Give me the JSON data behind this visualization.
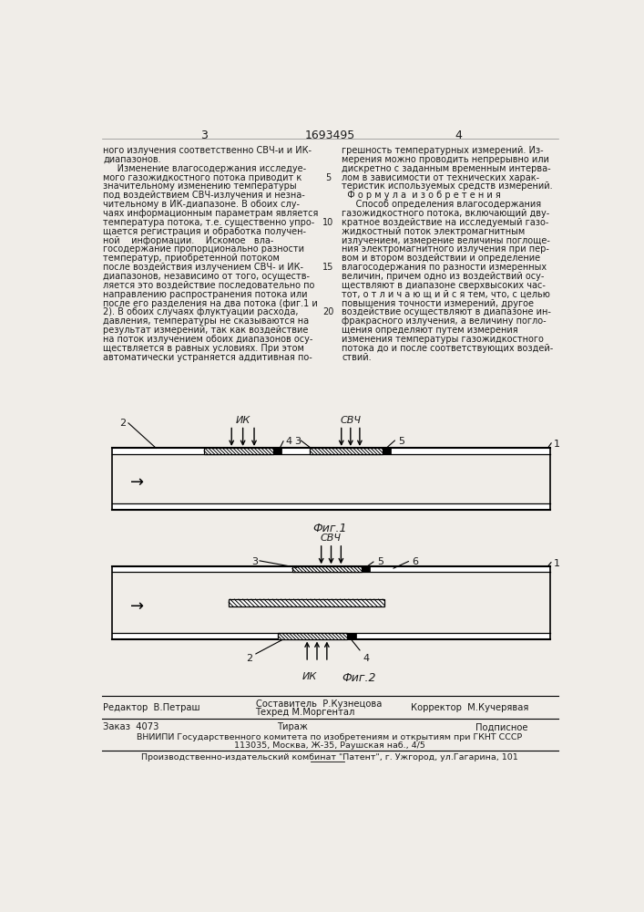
{
  "page_num_left": "3",
  "page_num_center": "1693495",
  "page_num_right": "4",
  "text_left_col": [
    "ного излучения соответственно СВЧ-и и ИК-",
    "диапазонов.",
    "     Изменение влагосодержания исследуе-",
    "мого газожидкостного потока приводит к",
    "значительному изменению температуры",
    "под воздействием СВЧ-излучения и незна-",
    "чительному в ИК-диапазоне. В обоих слу-",
    "чаях информационным параметрам является",
    "температура потока, т.е. существенно упро-",
    "щается регистрация и обработка получен-",
    "ной    информации.    Искомое   вла-",
    "госодержание пропорционально разности",
    "температур, приобретенной потоком",
    "после воздействия излучением СВЧ- и ИК-",
    "диапазонов, независимо от того, осуществ-",
    "ляется это воздействие последовательно по",
    "направлению распространения потока или",
    "после его разделения на два потока (фиг.1 и",
    "2). В обоих случаях флуктуации расхода,",
    "давления, температуры не сказываются на",
    "результат измерений, так как воздействие",
    "на поток излучением обоих диапазонов осу-",
    "ществляется в равных условиях. При этом",
    "автоматически устраняется аддитивная по-"
  ],
  "text_right_col": [
    "грешность температурных измерений. Из-",
    "мерения можно проводить непрерывно или",
    "дискретно с заданным временным интерва-",
    "лом в зависимости от технических харак-",
    "теристик используемых средств измерений.",
    "  Ф о р м у л а  и з о б р е т е н и я",
    "     Способ определения влагосодержания",
    "газожидкостного потока, включающий дву-",
    "кратное воздействие на исследуемый газо-",
    "жидкостный поток электромагнитным",
    "излучением, измерение величины поглоще-",
    "ния электромагнитного излучения при пер-",
    "вом и втором воздействии и определение",
    "влагосодержания по разности измеренных",
    "величин, причем одно из воздействий осу-",
    "ществляют в диапазоне сверхвысоких час-",
    "тот, о т л и ч а ю щ и й с я тем, что, с целью",
    "повышения точности измерений, другое",
    "воздействие осуществляют в диапазоне ин-",
    "фракрасного излучения, а величину погло-",
    "щения определяют путем измерения",
    "изменения температуры газожидкостного",
    "потока до и после соответствующих воздей-",
    "ствий."
  ],
  "line_number_5": "5",
  "line_number_10": "10",
  "line_number_15": "15",
  "line_number_20": "20",
  "fig1_label": "Фиг.1",
  "fig2_label": "Фиг.2",
  "ik_label": "ИК",
  "svch_label": "СВЧ",
  "footer_editor": "Редактор  В.Петраш",
  "footer_composer": "Составитель  Р.Кузнецова",
  "footer_tech": "Техред М.Моргентал",
  "footer_corrector": "Корректор  М.Кучерявая",
  "footer_order": "Заказ  4073",
  "footer_tirazh": "Тираж",
  "footer_podpisnoe": "Подписное",
  "footer_vniiipi": "ВНИИПИ Государственного комитета по изобретениям и открытиям при ГКНТ СССР",
  "footer_address": "113035, Москва, Ж-35, Раушская наб., 4/5",
  "footer_factory": "Производственно-издательский комбинат \"Патент\", г. Ужгород, ул.Гагарина, 101",
  "bg_color": "#f0ede8",
  "text_color": "#1a1a1a"
}
